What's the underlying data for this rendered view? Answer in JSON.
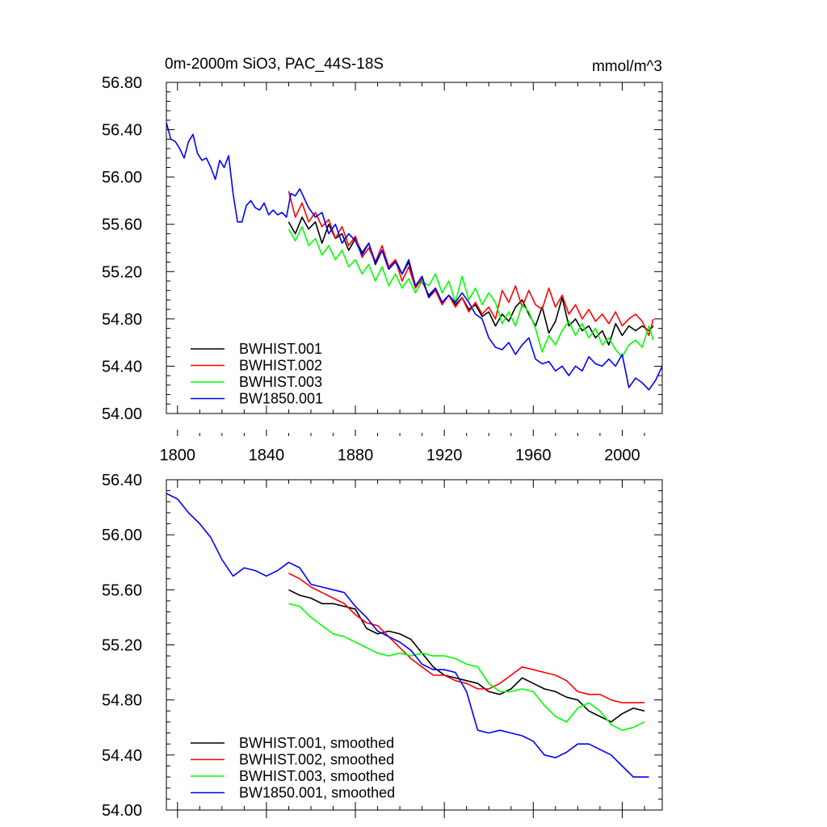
{
  "chart_data": [
    {
      "type": "line",
      "title": "0m-2000m SiO3, PAC_44S-18S",
      "units": "mmol/m^3",
      "xlim": [
        1795,
        2018
      ],
      "ylim": [
        54.0,
        56.8
      ],
      "x_ticks": [
        1800,
        1840,
        1880,
        1920,
        1960,
        2000
      ],
      "x_tick_labels": [
        "1800",
        "1840",
        "1880",
        "1920",
        "1960",
        "2000"
      ],
      "y_ticks": [
        54.0,
        54.4,
        54.8,
        55.2,
        55.6,
        56.0,
        56.4,
        56.8
      ],
      "y_tick_labels": [
        "54.00",
        "54.40",
        "54.80",
        "55.20",
        "55.60",
        "56.00",
        "56.40",
        "56.80"
      ],
      "legend_position": "bottom-left",
      "series": [
        {
          "name": "BWHIST.001",
          "color": "#000000",
          "x": [
            1850,
            1853,
            1856,
            1859,
            1862,
            1865,
            1868,
            1871,
            1874,
            1877,
            1880,
            1883,
            1886,
            1889,
            1892,
            1895,
            1898,
            1901,
            1904,
            1907,
            1910,
            1913,
            1916,
            1919,
            1922,
            1925,
            1928,
            1931,
            1934,
            1937,
            1940,
            1943,
            1946,
            1949,
            1952,
            1955,
            1958,
            1961,
            1964,
            1967,
            1970,
            1973,
            1976,
            1979,
            1982,
            1985,
            1988,
            1991,
            1994,
            1997,
            2000,
            2003,
            2006,
            2009,
            2012,
            2014
          ],
          "values": [
            55.62,
            55.52,
            55.66,
            55.56,
            55.62,
            55.44,
            55.6,
            55.48,
            55.52,
            55.38,
            55.48,
            55.36,
            55.44,
            55.26,
            55.38,
            55.22,
            55.3,
            55.18,
            55.28,
            55.08,
            55.12,
            55.0,
            55.06,
            54.94,
            55.0,
            54.92,
            54.98,
            54.88,
            54.92,
            54.82,
            54.86,
            54.74,
            54.84,
            54.78,
            54.9,
            54.96,
            54.84,
            54.74,
            54.9,
            54.68,
            54.78,
            54.98,
            54.74,
            54.8,
            54.7,
            54.74,
            54.64,
            54.7,
            54.58,
            54.76,
            54.66,
            54.74,
            54.7,
            54.74,
            54.7,
            54.74
          ]
        },
        {
          "name": "BWHIST.002",
          "color": "#ff0000",
          "x": [
            1850,
            1853,
            1856,
            1859,
            1862,
            1865,
            1868,
            1871,
            1874,
            1877,
            1880,
            1883,
            1886,
            1889,
            1892,
            1895,
            1898,
            1901,
            1904,
            1907,
            1910,
            1913,
            1916,
            1919,
            1922,
            1925,
            1928,
            1931,
            1934,
            1937,
            1940,
            1943,
            1946,
            1949,
            1952,
            1955,
            1958,
            1961,
            1964,
            1967,
            1970,
            1973,
            1976,
            1979,
            1982,
            1985,
            1988,
            1991,
            1994,
            1997,
            2000,
            2003,
            2006,
            2009,
            2012,
            2014
          ],
          "values": [
            55.88,
            55.66,
            55.78,
            55.62,
            55.7,
            55.58,
            55.64,
            55.48,
            55.58,
            55.42,
            55.5,
            55.32,
            55.4,
            55.28,
            55.42,
            55.24,
            55.3,
            55.12,
            55.24,
            55.06,
            55.14,
            54.98,
            55.04,
            54.92,
            55.0,
            54.9,
            54.98,
            54.86,
            54.94,
            54.84,
            54.9,
            54.8,
            55.04,
            54.94,
            55.08,
            54.9,
            55.04,
            54.92,
            54.88,
            55.06,
            54.9,
            55.0,
            54.84,
            54.92,
            54.8,
            54.88,
            54.78,
            54.84,
            54.76,
            54.86,
            54.74,
            54.8,
            54.84,
            54.78,
            54.66,
            54.8
          ]
        },
        {
          "name": "BWHIST.003",
          "color": "#00ff00",
          "x": [
            1850,
            1853,
            1856,
            1859,
            1862,
            1865,
            1868,
            1871,
            1874,
            1877,
            1880,
            1883,
            1886,
            1889,
            1892,
            1895,
            1898,
            1901,
            1904,
            1907,
            1910,
            1913,
            1916,
            1919,
            1922,
            1925,
            1928,
            1931,
            1934,
            1937,
            1940,
            1943,
            1946,
            1949,
            1952,
            1955,
            1958,
            1961,
            1964,
            1967,
            1970,
            1973,
            1976,
            1979,
            1982,
            1985,
            1988,
            1991,
            1994,
            1997,
            2000,
            2003,
            2006,
            2009,
            2012,
            2014
          ],
          "values": [
            55.56,
            55.46,
            55.58,
            55.42,
            55.48,
            55.34,
            55.42,
            55.3,
            55.38,
            55.24,
            55.3,
            55.18,
            55.26,
            55.12,
            55.24,
            55.08,
            55.18,
            55.06,
            55.14,
            55.02,
            55.12,
            55.08,
            55.18,
            55.02,
            55.12,
            54.94,
            55.16,
            54.96,
            55.06,
            54.92,
            55.02,
            54.94,
            54.76,
            54.86,
            54.74,
            54.92,
            54.86,
            54.72,
            54.52,
            54.66,
            54.58,
            54.7,
            54.78,
            54.66,
            54.76,
            54.64,
            54.72,
            54.58,
            54.64,
            54.54,
            54.48,
            54.58,
            54.62,
            54.56,
            54.74,
            54.62
          ]
        },
        {
          "name": "BW1850.001",
          "color": "#0000ff",
          "x": [
            1795,
            1797,
            1799,
            1801,
            1803,
            1805,
            1807,
            1809,
            1811,
            1813,
            1815,
            1817,
            1819,
            1821,
            1823,
            1825,
            1827,
            1829,
            1831,
            1833,
            1835,
            1837,
            1839,
            1841,
            1843,
            1845,
            1847,
            1849,
            1851,
            1853,
            1855,
            1857,
            1859,
            1862,
            1865,
            1868,
            1871,
            1874,
            1877,
            1880,
            1883,
            1886,
            1889,
            1892,
            1895,
            1898,
            1901,
            1904,
            1907,
            1910,
            1913,
            1916,
            1919,
            1922,
            1925,
            1928,
            1931,
            1934,
            1937,
            1940,
            1943,
            1946,
            1949,
            1952,
            1955,
            1958,
            1961,
            1964,
            1967,
            1970,
            1973,
            1976,
            1979,
            1982,
            1985,
            1988,
            1991,
            1994,
            1997,
            2000,
            2003,
            2006,
            2009,
            2012,
            2015,
            2018
          ],
          "values": [
            56.46,
            56.32,
            56.3,
            56.24,
            56.16,
            56.3,
            56.36,
            56.2,
            56.14,
            56.16,
            56.08,
            55.98,
            56.14,
            56.08,
            56.18,
            55.86,
            55.62,
            55.62,
            55.76,
            55.8,
            55.74,
            55.72,
            55.78,
            55.68,
            55.72,
            55.68,
            55.7,
            55.66,
            55.86,
            55.84,
            55.9,
            55.82,
            55.74,
            55.66,
            55.7,
            55.52,
            55.6,
            55.44,
            55.52,
            55.46,
            55.34,
            55.44,
            55.28,
            55.38,
            55.22,
            55.28,
            55.18,
            55.3,
            55.08,
            55.16,
            54.98,
            55.06,
            54.94,
            55.0,
            54.94,
            55.02,
            54.94,
            54.84,
            54.8,
            54.64,
            54.56,
            54.54,
            54.6,
            54.5,
            54.58,
            54.64,
            54.46,
            54.42,
            54.44,
            54.36,
            54.4,
            54.32,
            54.4,
            54.36,
            54.48,
            54.42,
            54.4,
            54.46,
            54.4,
            54.5,
            54.22,
            54.3,
            54.26,
            54.2,
            54.28,
            54.4
          ]
        }
      ]
    },
    {
      "type": "line",
      "title": "",
      "xlim": [
        1795,
        2018
      ],
      "ylim": [
        54.0,
        56.4
      ],
      "x_ticks": [
        1800,
        1840,
        1880,
        1920,
        1960,
        2000
      ],
      "y_ticks": [
        54.0,
        54.4,
        54.8,
        55.2,
        55.6,
        56.0,
        56.4
      ],
      "y_tick_labels": [
        "54.00",
        "54.40",
        "54.80",
        "55.20",
        "55.60",
        "56.00",
        "56.40"
      ],
      "legend_position": "bottom-left",
      "series": [
        {
          "name": "BWHIST.001, smoothed",
          "color": "#000000",
          "x": [
            1850,
            1855,
            1860,
            1865,
            1870,
            1875,
            1880,
            1885,
            1890,
            1895,
            1900,
            1905,
            1910,
            1915,
            1920,
            1925,
            1930,
            1935,
            1940,
            1945,
            1950,
            1955,
            1960,
            1965,
            1970,
            1975,
            1980,
            1985,
            1990,
            1995,
            2000,
            2005,
            2010
          ],
          "values": [
            55.6,
            55.56,
            55.54,
            55.5,
            55.5,
            55.48,
            55.46,
            55.32,
            55.28,
            55.3,
            55.28,
            55.24,
            55.14,
            55.04,
            54.98,
            54.96,
            54.94,
            54.92,
            54.86,
            54.84,
            54.88,
            54.96,
            54.92,
            54.88,
            54.86,
            54.82,
            54.8,
            54.72,
            54.68,
            54.64,
            54.7,
            54.74,
            54.72
          ]
        },
        {
          "name": "BWHIST.002, smoothed",
          "color": "#ff0000",
          "x": [
            1850,
            1855,
            1860,
            1865,
            1870,
            1875,
            1880,
            1885,
            1890,
            1895,
            1900,
            1905,
            1910,
            1915,
            1920,
            1925,
            1930,
            1935,
            1940,
            1945,
            1950,
            1955,
            1960,
            1965,
            1970,
            1975,
            1980,
            1985,
            1990,
            1995,
            2000,
            2005,
            2010
          ],
          "values": [
            55.72,
            55.68,
            55.62,
            55.58,
            55.54,
            55.5,
            55.42,
            55.36,
            55.34,
            55.26,
            55.18,
            55.1,
            55.04,
            54.98,
            54.98,
            54.94,
            54.92,
            54.88,
            54.88,
            54.92,
            54.98,
            55.04,
            55.02,
            55.0,
            54.98,
            54.94,
            54.86,
            54.84,
            54.84,
            54.8,
            54.78,
            54.78,
            54.78
          ]
        },
        {
          "name": "BWHIST.003, smoothed",
          "color": "#00ff00",
          "x": [
            1850,
            1855,
            1860,
            1865,
            1870,
            1875,
            1880,
            1885,
            1890,
            1895,
            1900,
            1905,
            1910,
            1915,
            1920,
            1925,
            1930,
            1935,
            1940,
            1945,
            1950,
            1955,
            1960,
            1965,
            1970,
            1975,
            1980,
            1985,
            1990,
            1995,
            2000,
            2005,
            2010
          ],
          "values": [
            55.5,
            55.48,
            55.4,
            55.34,
            55.28,
            55.26,
            55.22,
            55.18,
            55.14,
            55.12,
            55.14,
            55.12,
            55.14,
            55.12,
            55.12,
            55.1,
            55.06,
            55.04,
            54.92,
            54.86,
            54.86,
            54.88,
            54.86,
            54.76,
            54.68,
            54.64,
            54.74,
            54.78,
            54.72,
            54.62,
            54.58,
            54.6,
            54.64
          ]
        },
        {
          "name": "BW1850.001, smoothed",
          "color": "#0000ff",
          "x": [
            1795,
            1800,
            1805,
            1810,
            1815,
            1820,
            1825,
            1830,
            1835,
            1840,
            1845,
            1850,
            1855,
            1860,
            1865,
            1870,
            1875,
            1880,
            1885,
            1890,
            1895,
            1900,
            1905,
            1910,
            1915,
            1920,
            1925,
            1930,
            1935,
            1940,
            1945,
            1950,
            1955,
            1960,
            1965,
            1970,
            1975,
            1980,
            1985,
            1990,
            1995,
            2000,
            2005,
            2010,
            2012
          ],
          "values": [
            56.3,
            56.26,
            56.16,
            56.08,
            55.98,
            55.82,
            55.7,
            55.76,
            55.74,
            55.7,
            55.74,
            55.8,
            55.76,
            55.64,
            55.62,
            55.6,
            55.58,
            55.48,
            55.4,
            55.3,
            55.26,
            55.22,
            55.16,
            55.06,
            55.02,
            55.02,
            55.0,
            54.86,
            54.58,
            54.56,
            54.58,
            54.56,
            54.54,
            54.5,
            54.4,
            54.38,
            54.42,
            54.48,
            54.48,
            54.44,
            54.4,
            54.32,
            54.24,
            54.24,
            54.24
          ]
        }
      ]
    }
  ]
}
